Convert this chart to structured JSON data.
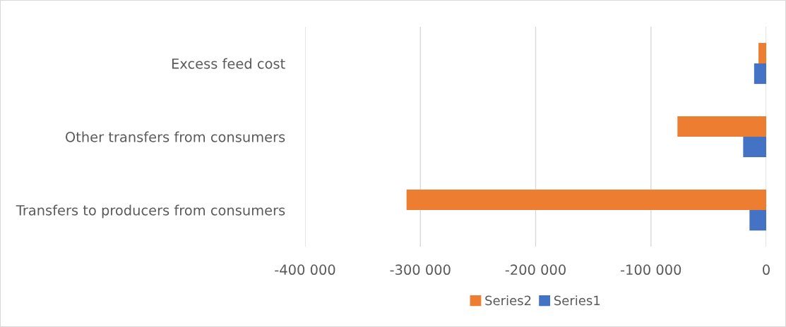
{
  "chart_data": {
    "type": "bar",
    "orientation": "horizontal",
    "categories": [
      "Excess feed cost",
      "Other transfers from consumers",
      "Transfers to producers from consumers"
    ],
    "series": [
      {
        "name": "Series2",
        "color": "#ed7d31",
        "values": [
          -6700,
          -77000,
          -312000
        ]
      },
      {
        "name": "Series1",
        "color": "#4472c4",
        "values": [
          -10500,
          -20000,
          -14500
        ]
      }
    ],
    "xlim": [
      -400000,
      0
    ],
    "xticks": [
      {
        "value": -400000,
        "label": "-400 000"
      },
      {
        "value": -300000,
        "label": "-300 000"
      },
      {
        "value": -200000,
        "label": "-200 000"
      },
      {
        "value": -100000,
        "label": "-100 000"
      },
      0
    ],
    "grid": "x",
    "legend": "bottom"
  }
}
